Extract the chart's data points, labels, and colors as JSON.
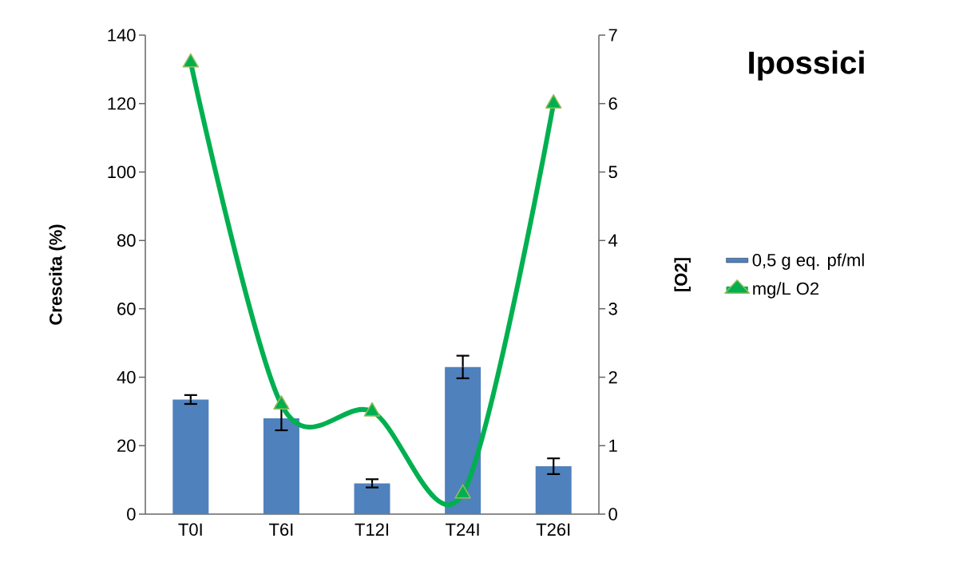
{
  "chart_data": {
    "type": "bar",
    "title": "Ipossici",
    "categories": [
      "T0I",
      "T6I",
      "T12I",
      "T24I",
      "T26I"
    ],
    "ylabel": "Crescita (%)",
    "y2label": "[O2]",
    "ylim": [
      0,
      140
    ],
    "yticks": [
      0,
      20,
      40,
      60,
      80,
      100,
      120,
      140
    ],
    "y2lim": [
      0,
      7
    ],
    "y2ticks": [
      0,
      1,
      2,
      3,
      4,
      5,
      6,
      7
    ],
    "legend": "right",
    "grid": false,
    "series": [
      {
        "name": "0,5 g eq. pf/ml",
        "color": "#4f81bd",
        "values": [
          33.5,
          28,
          9,
          43,
          14
        ],
        "errors": [
          1.3,
          3.5,
          1.2,
          3.3,
          2.3
        ]
      },
      {
        "name": "mg/L O2",
        "type": "line",
        "axis": "y2",
        "color": "#00b050",
        "values": [
          6.6,
          1.6,
          1.5,
          0.3,
          6.0
        ],
        "marker": "triangle",
        "line_style": "solid"
      }
    ]
  }
}
